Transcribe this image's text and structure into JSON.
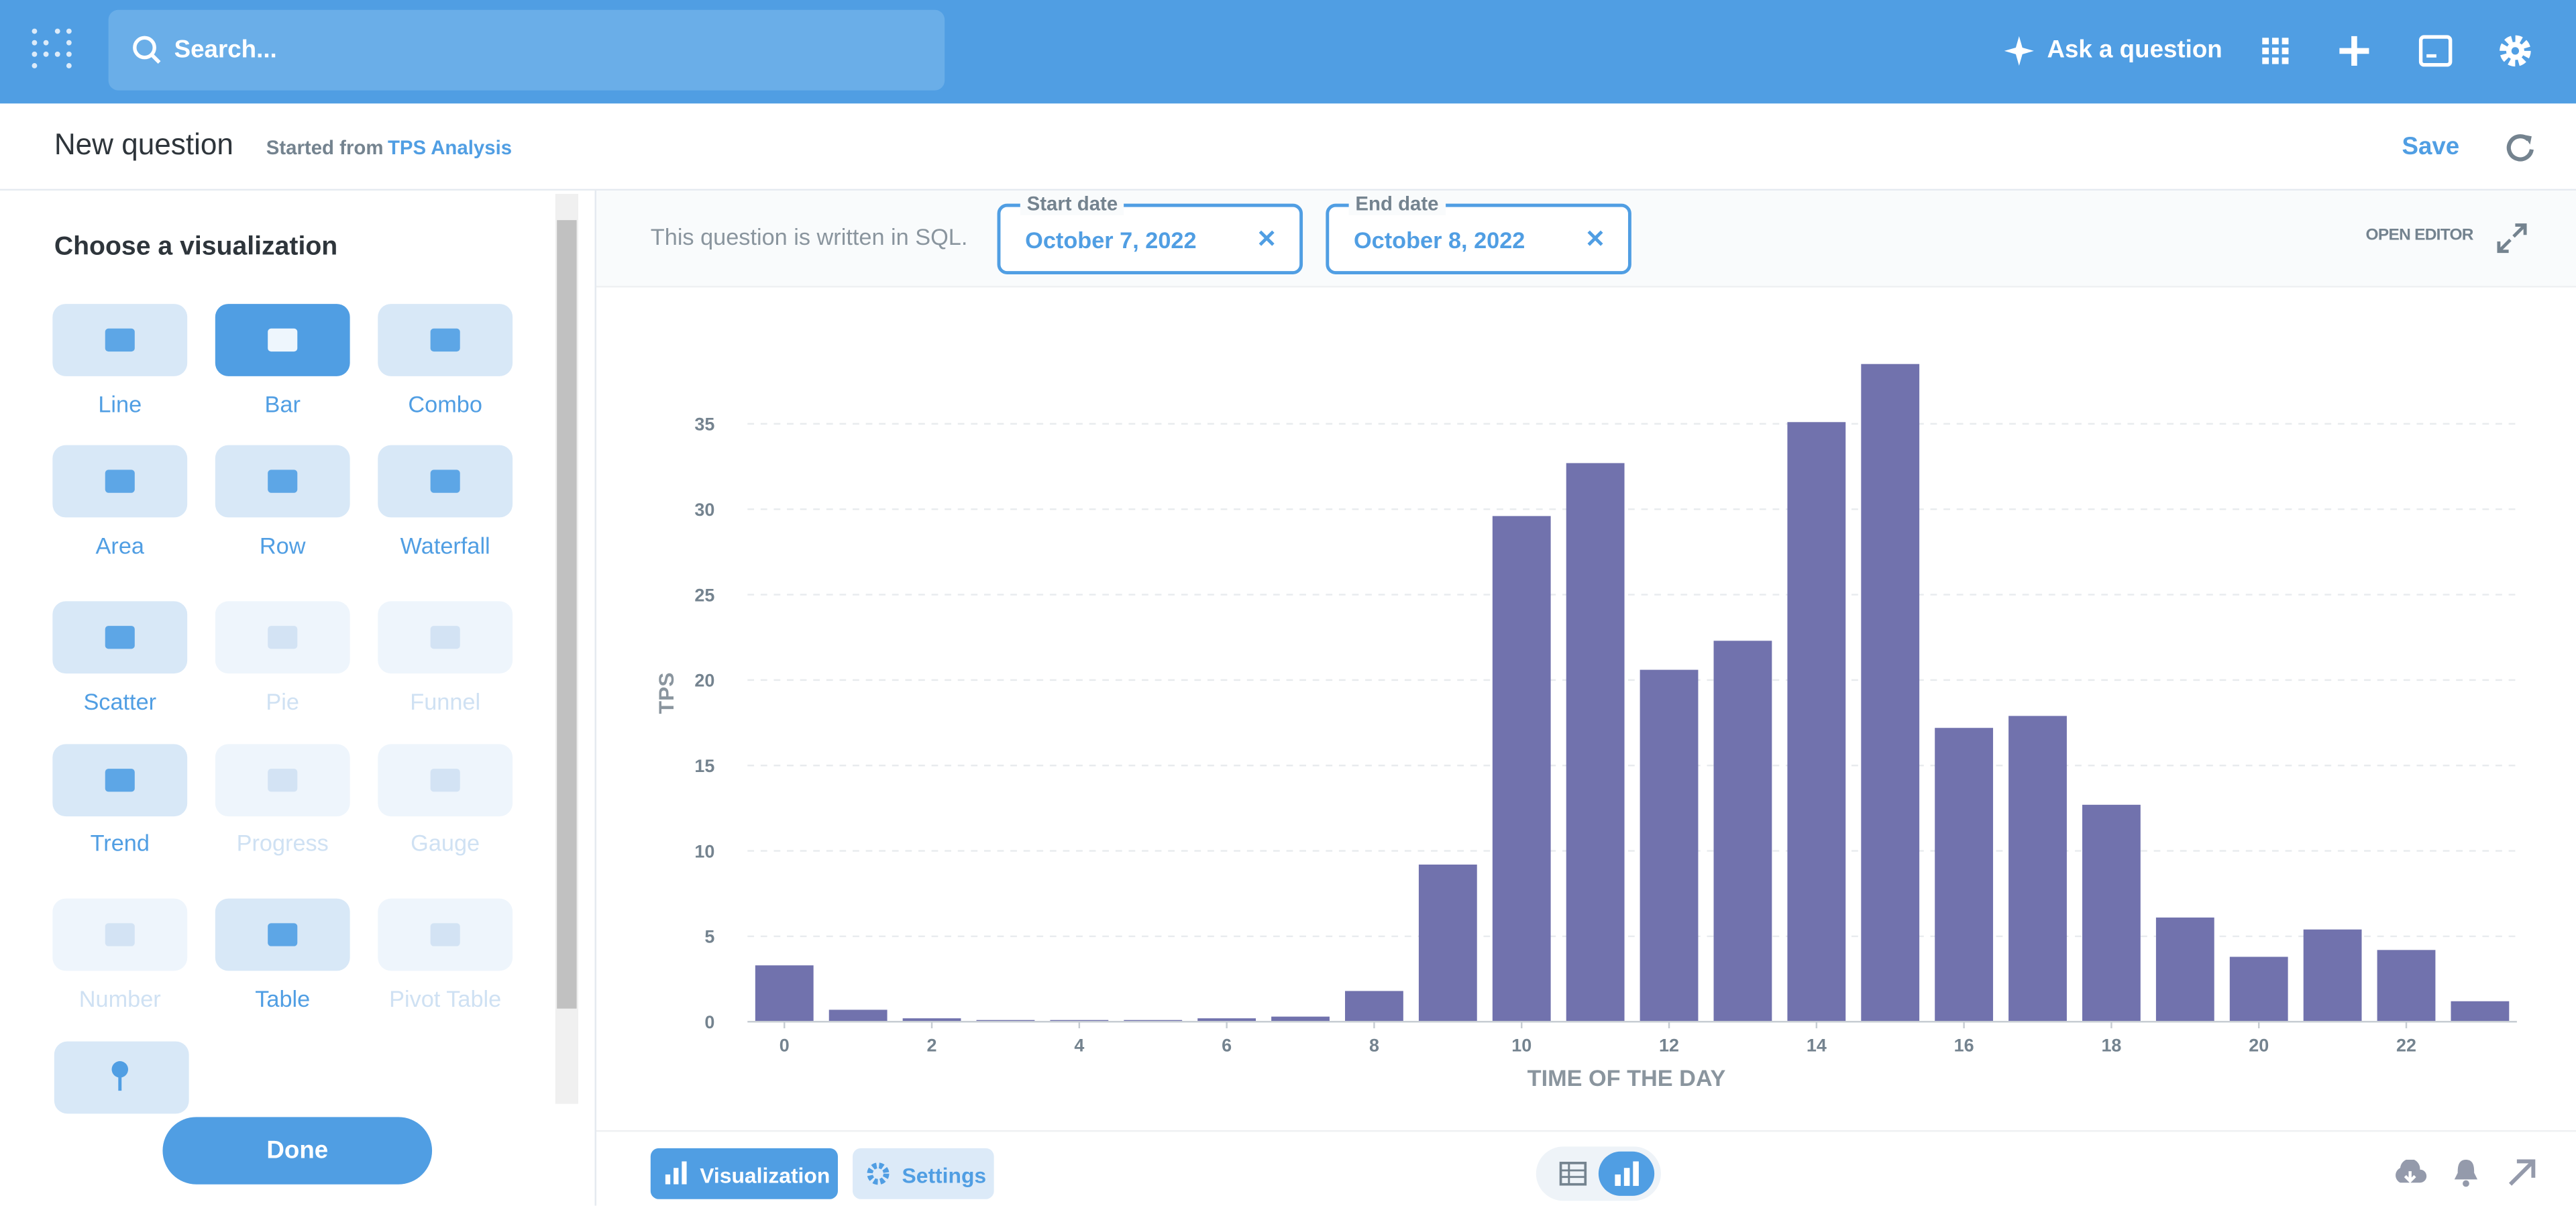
{
  "nav": {
    "search_placeholder": "Search...",
    "ask": "Ask a question"
  },
  "header": {
    "title": "New question",
    "started_from": "Started from",
    "source": "TPS Analysis",
    "save": "Save"
  },
  "sidebar": {
    "title": "Choose a visualization",
    "options": [
      {
        "label": "Line",
        "state": "available"
      },
      {
        "label": "Bar",
        "state": "selected"
      },
      {
        "label": "Combo",
        "state": "available"
      },
      {
        "label": "Area",
        "state": "available"
      },
      {
        "label": "Row",
        "state": "available"
      },
      {
        "label": "Waterfall",
        "state": "available"
      },
      {
        "label": "Scatter",
        "state": "available"
      },
      {
        "label": "Pie",
        "state": "disabled"
      },
      {
        "label": "Funnel",
        "state": "disabled"
      },
      {
        "label": "Trend",
        "state": "available"
      },
      {
        "label": "Progress",
        "state": "disabled"
      },
      {
        "label": "Gauge",
        "state": "disabled"
      },
      {
        "label": "Number",
        "state": "disabled"
      },
      {
        "label": "Table",
        "state": "available"
      },
      {
        "label": "Pivot Table",
        "state": "disabled"
      }
    ],
    "done": "Done"
  },
  "query_bar": {
    "note": "This question is written in SQL.",
    "filters": [
      {
        "label": "Start date",
        "value": "October 7, 2022"
      },
      {
        "label": "End date",
        "value": "October 8, 2022"
      }
    ],
    "open_editor": "OPEN EDITOR"
  },
  "chart_data": {
    "type": "bar",
    "x_label": "TIME OF THE DAY",
    "y_label": "TPS",
    "x": [
      0,
      1,
      2,
      3,
      4,
      5,
      6,
      7,
      8,
      9,
      10,
      11,
      12,
      13,
      14,
      15,
      16,
      17,
      18,
      19,
      20,
      21,
      22,
      23
    ],
    "values": [
      3.3,
      0.7,
      0.2,
      0.1,
      0.1,
      0.1,
      0.2,
      0.3,
      1.8,
      9.2,
      29.6,
      32.7,
      20.6,
      22.3,
      35.1,
      38.5,
      17.2,
      17.9,
      12.7,
      6.1,
      3.8,
      5.4,
      4.2,
      1.2
    ],
    "color": "#7172ad",
    "xlim": [
      -0.5,
      23.5
    ],
    "xticks": [
      0,
      2,
      4,
      6,
      8,
      10,
      12,
      14,
      16,
      18,
      20,
      22
    ],
    "ylim": [
      0,
      40
    ],
    "yticks": [
      0,
      5,
      10,
      15,
      20,
      25,
      30,
      35
    ],
    "grid": true
  },
  "footer": {
    "visualization": "Visualization",
    "settings": "Settings"
  }
}
